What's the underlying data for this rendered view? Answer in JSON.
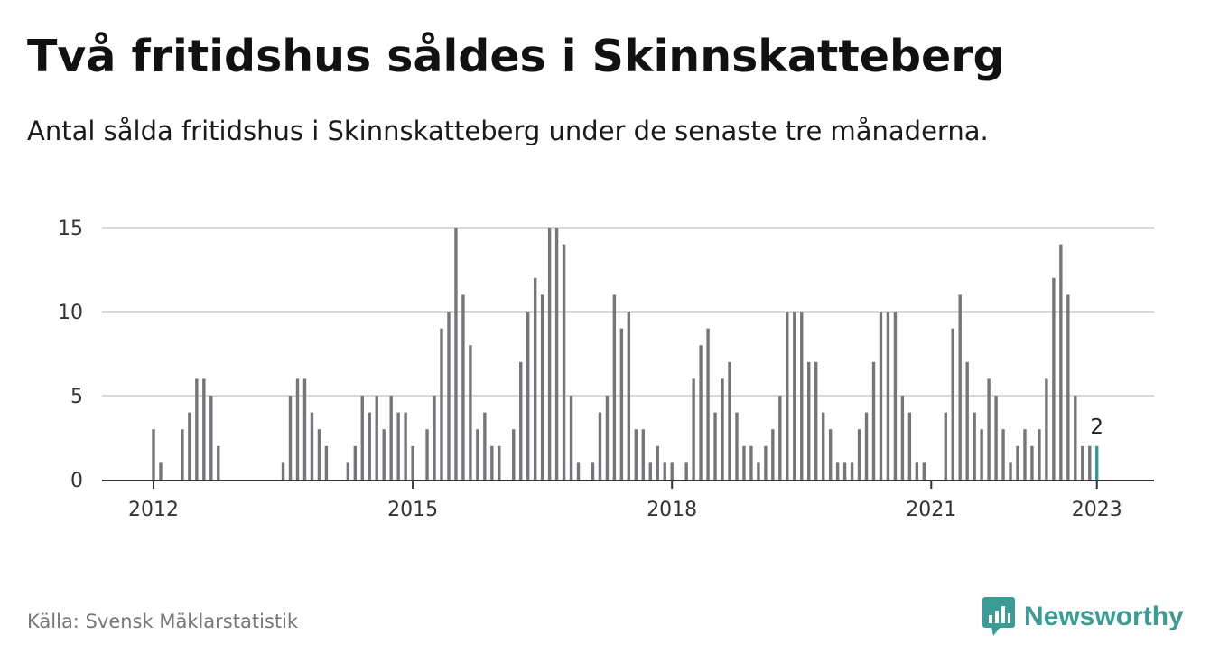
{
  "header": {
    "title": "Två fritidshus såldes i Skinnskatteberg",
    "subtitle": "Antal sålda fritidshus i Skinnskatteberg under de senaste tre månaderna."
  },
  "footer": {
    "source": "Källa: Svensk Mäklarstatistik",
    "brand": "Newsworthy"
  },
  "colors": {
    "bar": "#76767a",
    "highlight": "#2a9d96",
    "grid": "#d9d9d9",
    "axis": "#333333",
    "brand": "#3a9c94"
  },
  "icons": {
    "brand_logo": "bar-chart-speech-bubble-icon"
  },
  "chart_data": {
    "type": "bar",
    "start": "2012-01",
    "values": [
      3,
      1,
      0,
      0,
      3,
      4,
      6,
      6,
      5,
      2,
      0,
      0,
      0,
      0,
      0,
      0,
      0,
      0,
      1,
      5,
      6,
      6,
      4,
      3,
      2,
      0,
      0,
      1,
      2,
      5,
      4,
      5,
      3,
      5,
      4,
      4,
      2,
      0,
      3,
      5,
      9,
      10,
      15,
      11,
      8,
      3,
      4,
      2,
      2,
      0,
      3,
      7,
      10,
      12,
      11,
      15,
      15,
      14,
      5,
      1,
      0,
      1,
      4,
      5,
      11,
      9,
      10,
      3,
      3,
      1,
      2,
      1,
      1,
      0,
      1,
      6,
      8,
      9,
      4,
      6,
      7,
      4,
      2,
      2,
      1,
      2,
      3,
      5,
      10,
      10,
      10,
      7,
      7,
      4,
      3,
      1,
      1,
      1,
      3,
      4,
      7,
      10,
      10,
      10,
      5,
      4,
      1,
      1,
      0,
      0,
      4,
      9,
      11,
      7,
      4,
      3,
      6,
      5,
      3,
      1,
      2,
      3,
      2,
      3,
      6,
      12,
      14,
      11,
      5,
      2,
      2,
      2
    ],
    "highlight_last": true,
    "last_value_label": "2",
    "x_ticks": [
      "2012",
      "2015",
      "2018",
      "2021",
      "2023"
    ],
    "y_ticks": [
      0,
      5,
      10,
      15
    ],
    "ylim": [
      0,
      15
    ],
    "grid": true,
    "legend": "none"
  }
}
